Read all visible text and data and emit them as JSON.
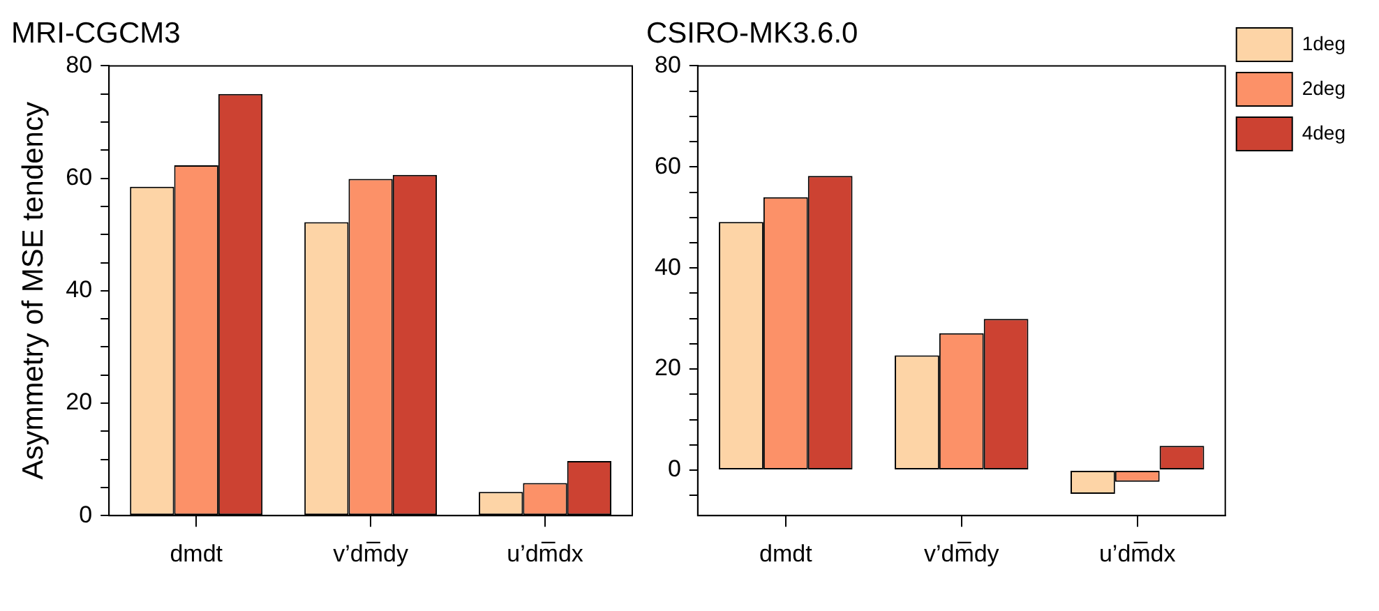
{
  "chart_data": [
    {
      "type": "bar",
      "title": "MRI-CGCM3",
      "ylabel": "Asymmetry of MSE tendency",
      "categories": [
        "dmdt",
        "v’dm̅dy",
        "u’dm̅dx"
      ],
      "series": [
        {
          "color": "#fdd4a6",
          "values": [
            58.5,
            52.2,
            4.2
          ]
        },
        {
          "color": "#fc9168",
          "values": [
            62.3,
            59.9,
            5.8
          ]
        },
        {
          "color": "#cc4232",
          "values": [
            75,
            60.6,
            9.7
          ]
        }
      ],
      "ylim": [
        0,
        80
      ],
      "yticks": [
        0,
        {
          "value": 5,
          "label": null
        },
        {
          "value": 10,
          "label": null
        },
        {
          "value": 15,
          "label": null
        },
        20,
        {
          "value": 25,
          "label": null
        },
        {
          "value": 30,
          "label": null
        },
        {
          "value": 35,
          "label": null
        },
        40,
        {
          "value": 45,
          "label": null
        },
        {
          "value": 50,
          "label": null
        },
        {
          "value": 55,
          "label": null
        },
        60,
        {
          "value": 65,
          "label": null
        },
        {
          "value": 70,
          "label": null
        },
        {
          "value": 75,
          "label": null
        },
        80
      ],
      "grid": false,
      "legend": false
    },
    {
      "type": "bar",
      "title": "CSIRO-MK3.6.0",
      "categories": [
        "dmdt",
        "v’dm̅dy",
        "u’dm̅dx"
      ],
      "series": [
        {
          "name": "1deg",
          "color": "#fdd4a6",
          "values": [
            49.1,
            22.7,
            -4.7
          ]
        },
        {
          "name": "2deg",
          "color": "#fc9168",
          "values": [
            54,
            27.1,
            -2.3
          ]
        },
        {
          "name": "4deg",
          "color": "#cc4232",
          "values": [
            58.2,
            29.9,
            4.8
          ]
        }
      ],
      "ylim": [
        -9,
        80
      ],
      "yticks": [
        {
          "value": -5,
          "label": null
        },
        0,
        {
          "value": 5,
          "label": null
        },
        {
          "value": 10,
          "label": null
        },
        {
          "value": 15,
          "label": null
        },
        20,
        {
          "value": 25,
          "label": null
        },
        {
          "value": 30,
          "label": null
        },
        {
          "value": 35,
          "label": null
        },
        40,
        {
          "value": 45,
          "label": null
        },
        {
          "value": 50,
          "label": null
        },
        {
          "value": 55,
          "label": null
        },
        60,
        {
          "value": 65,
          "label": null
        },
        {
          "value": 70,
          "label": null
        },
        {
          "value": 75,
          "label": null
        },
        80
      ],
      "grid": false,
      "legend": "right"
    }
  ]
}
